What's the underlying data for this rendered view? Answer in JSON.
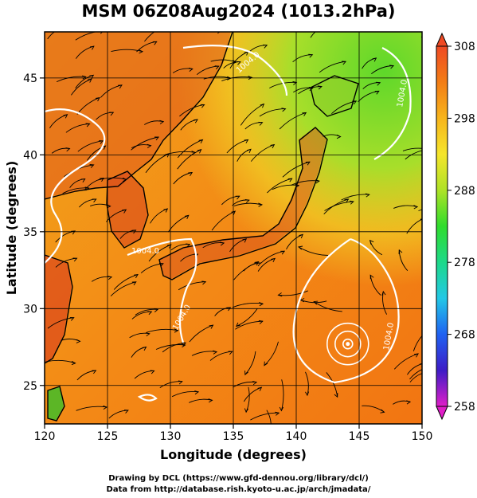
{
  "title": "MSM 06Z08Aug2024 (1013.2hPa)",
  "chart_data": {
    "type": "heatmap",
    "xlabel": "Longitude (degrees)",
    "ylabel": "Latitude  (degrees)",
    "xlim": [
      120,
      150
    ],
    "ylim": [
      22.5,
      48
    ],
    "xticks": [
      "120",
      "125",
      "130",
      "135",
      "140",
      "145",
      "150"
    ],
    "yticks": [
      "25",
      "30",
      "35",
      "40",
      "45"
    ],
    "grid": true,
    "colorbar": {
      "min": 258,
      "max": 308,
      "ticks": [
        "308",
        "298",
        "288",
        "278",
        "268",
        "258"
      ],
      "colors": [
        "#e01ec8",
        "#3d1cc6",
        "#1f62f2",
        "#22c8e6",
        "#1ed98a",
        "#2fdc2c",
        "#aee226",
        "#f5e52b",
        "#f7b51c",
        "#f37d15",
        "#ef4a24"
      ]
    },
    "contours": [
      {
        "label": "1004.0"
      },
      {
        "label": "1004.0"
      },
      {
        "label": "1004.0"
      },
      {
        "label": "1004.0"
      },
      {
        "label": "1004.0"
      }
    ],
    "typhoon_center": {
      "lon": 144.1,
      "lat": 27.7
    }
  },
  "footer": {
    "line1": "Drawing by DCL (https://www.gfd-dennou.org/library/dcl/)",
    "line2": "Data from http://database.rish.kyoto-u.ac.jp/arch/jmadata/"
  }
}
